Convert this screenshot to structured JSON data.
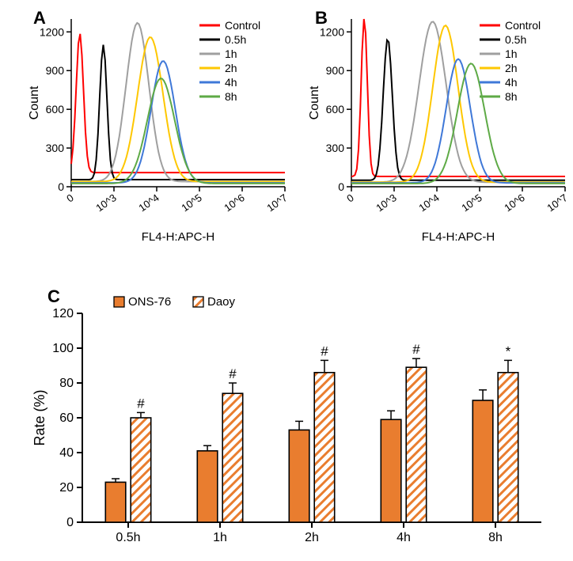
{
  "panelA": {
    "label": "A",
    "type": "line",
    "xlabel": "FL4-H:APC-H",
    "ylabel": "Count",
    "label_fontsize": 14,
    "title_fontsize": 22,
    "xscale": "log",
    "xlim": [
      1,
      10000000.0
    ],
    "ylim": [
      0,
      1300
    ],
    "yticks": [
      0,
      300,
      600,
      900,
      1200
    ],
    "xticks_labels": [
      "0",
      "10^3",
      "10^4",
      "10^5",
      "10^6",
      "10^7"
    ],
    "background_color": "#ffffff",
    "axis_color": "#000000",
    "series": [
      {
        "name": "Control",
        "color": "#ff0000",
        "peak_x": 2.2,
        "peak_y": 1190,
        "width": 0.12,
        "baseline": 110
      },
      {
        "name": "0.5h",
        "color": "#000000",
        "peak_x": 2.75,
        "peak_y": 1100,
        "width": 0.12,
        "baseline": 55
      },
      {
        "name": "1h",
        "color": "#9f9f9f",
        "peak_x": 3.55,
        "peak_y": 1270,
        "width": 0.38,
        "baseline": 40
      },
      {
        "name": "2h",
        "color": "#fec701",
        "peak_x": 3.85,
        "peak_y": 1160,
        "width": 0.42,
        "baseline": 40
      },
      {
        "name": "4h",
        "color": "#3f78d8",
        "peak_x": 4.15,
        "peak_y": 975,
        "width": 0.4,
        "baseline": 30
      },
      {
        "name": "8h",
        "color": "#5eaa46",
        "peak_x": 4.1,
        "peak_y": 840,
        "width": 0.45,
        "baseline": 25
      }
    ]
  },
  "panelB": {
    "label": "B",
    "type": "line",
    "xlabel": "FL4-H:APC-H",
    "ylabel": "Count",
    "label_fontsize": 14,
    "xscale": "log",
    "xlim": [
      1,
      10000000.0
    ],
    "ylim": [
      0,
      1300
    ],
    "yticks": [
      0,
      300,
      600,
      900,
      1200
    ],
    "xticks_labels": [
      "0",
      "10^3",
      "10^4",
      "10^5",
      "10^6",
      "10^7"
    ],
    "background_color": "#ffffff",
    "axis_color": "#000000",
    "series": [
      {
        "name": "Control",
        "color": "#ff0000",
        "peak_x": 2.3,
        "peak_y": 1320,
        "width": 0.1,
        "baseline": 80
      },
      {
        "name": "0.5h",
        "color": "#000000",
        "peak_x": 2.85,
        "peak_y": 1150,
        "width": 0.15,
        "baseline": 50
      },
      {
        "name": "1h",
        "color": "#9f9f9f",
        "peak_x": 3.9,
        "peak_y": 1280,
        "width": 0.45,
        "baseline": 35
      },
      {
        "name": "2h",
        "color": "#fec701",
        "peak_x": 4.2,
        "peak_y": 1250,
        "width": 0.42,
        "baseline": 35
      },
      {
        "name": "4h",
        "color": "#3f78d8",
        "peak_x": 4.5,
        "peak_y": 990,
        "width": 0.4,
        "baseline": 30
      },
      {
        "name": "8h",
        "color": "#5eaa46",
        "peak_x": 4.8,
        "peak_y": 955,
        "width": 0.45,
        "baseline": 25
      }
    ]
  },
  "panelC": {
    "label": "C",
    "type": "bar",
    "xlabel": "",
    "ylabel": "Rate (%)",
    "label_fontsize": 16,
    "ylim": [
      0,
      120
    ],
    "yticks": [
      0,
      20,
      40,
      60,
      80,
      100,
      120
    ],
    "categories": [
      "0.5h",
      "1h",
      "2h",
      "4h",
      "8h"
    ],
    "legend": [
      {
        "name": "ONS-76",
        "fill": "#e97d2f",
        "pattern": "solid"
      },
      {
        "name": "Daoy",
        "fill": "#e97d2f",
        "pattern": "hatch"
      }
    ],
    "bars": {
      "ONS-76": {
        "values": [
          23,
          41,
          53,
          59,
          70
        ],
        "errors": [
          2,
          3,
          5,
          5,
          6
        ],
        "fill": "#e97d2f",
        "pattern": "solid"
      },
      "Daoy": {
        "values": [
          60,
          74,
          86,
          89,
          86
        ],
        "errors": [
          3,
          6,
          7,
          5,
          7
        ],
        "fill": "#e97d2f",
        "pattern": "hatch"
      }
    },
    "annotations": [
      {
        "x": 0,
        "series": "Daoy",
        "symbol": "#"
      },
      {
        "x": 1,
        "series": "Daoy",
        "symbol": "#"
      },
      {
        "x": 2,
        "series": "Daoy",
        "symbol": "#"
      },
      {
        "x": 3,
        "series": "Daoy",
        "symbol": "#"
      },
      {
        "x": 4,
        "series": "Daoy",
        "symbol": "*"
      }
    ],
    "bar_group_width": 0.6,
    "bar_border": "#000000",
    "background_color": "#ffffff"
  }
}
